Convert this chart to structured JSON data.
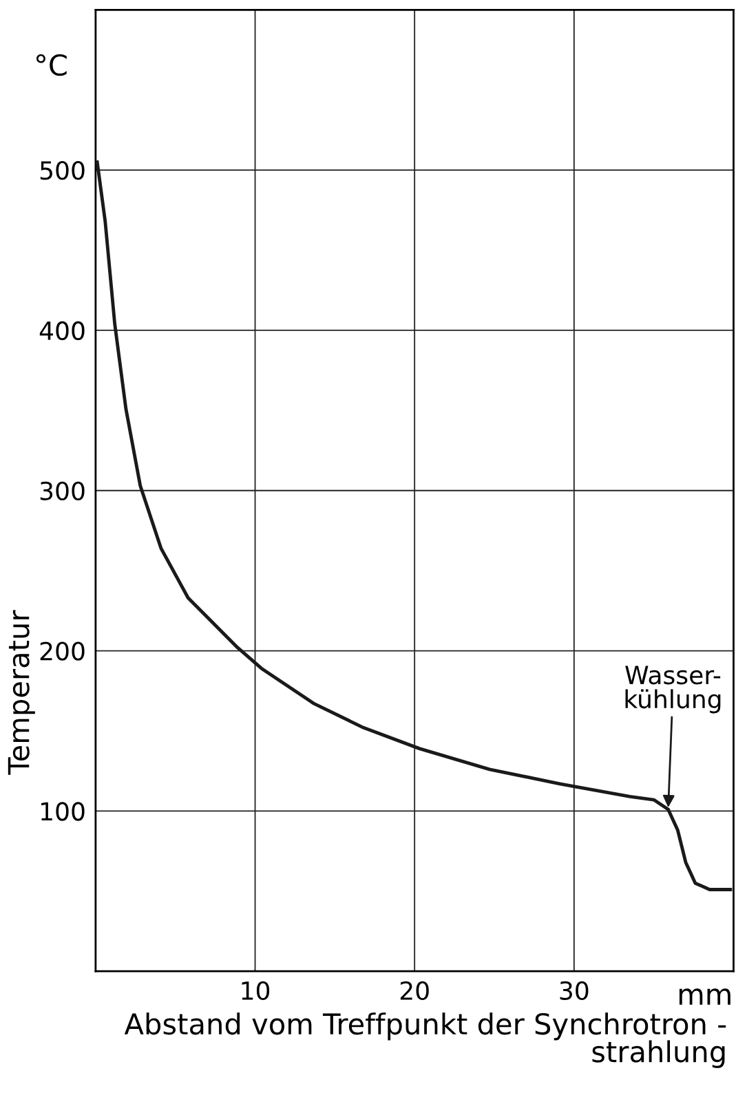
{
  "chart_data": {
    "type": "line",
    "xlabel": "Abstand vom Treffpunkt der Synchrotron -\nstrahlung",
    "ylabel": "Temperatur",
    "annotations": [
      "°C",
      "mm",
      {
        "text": "Wasser-\nkühlung",
        "x": 35.9,
        "y": 101
      }
    ],
    "x": [
      0.1,
      0.6,
      1.2,
      1.9,
      2.8,
      4.1,
      5.8,
      7.1,
      8.9,
      10.4,
      13.7,
      16.8,
      20.3,
      24.7,
      29.1,
      33.5,
      35.0,
      35.9,
      36.5,
      37.0,
      37.6,
      38.5,
      39.8
    ],
    "series": [
      {
        "color": "#1a1a1a",
        "values": [
          505,
          468,
          404,
          351,
          303,
          264,
          233,
          220,
          202,
          189,
          167,
          152,
          139,
          126,
          117,
          109,
          107,
          101,
          88,
          68,
          55,
          51,
          51
        ]
      }
    ],
    "xlim": [
      0,
      40
    ],
    "ylim": [
      0,
      600
    ],
    "xticks": [
      10,
      20,
      30
    ],
    "yticks": [
      100,
      200,
      300,
      400,
      500
    ],
    "grid": true,
    "legend": false,
    "marker": "none",
    "line_style": "solid"
  }
}
